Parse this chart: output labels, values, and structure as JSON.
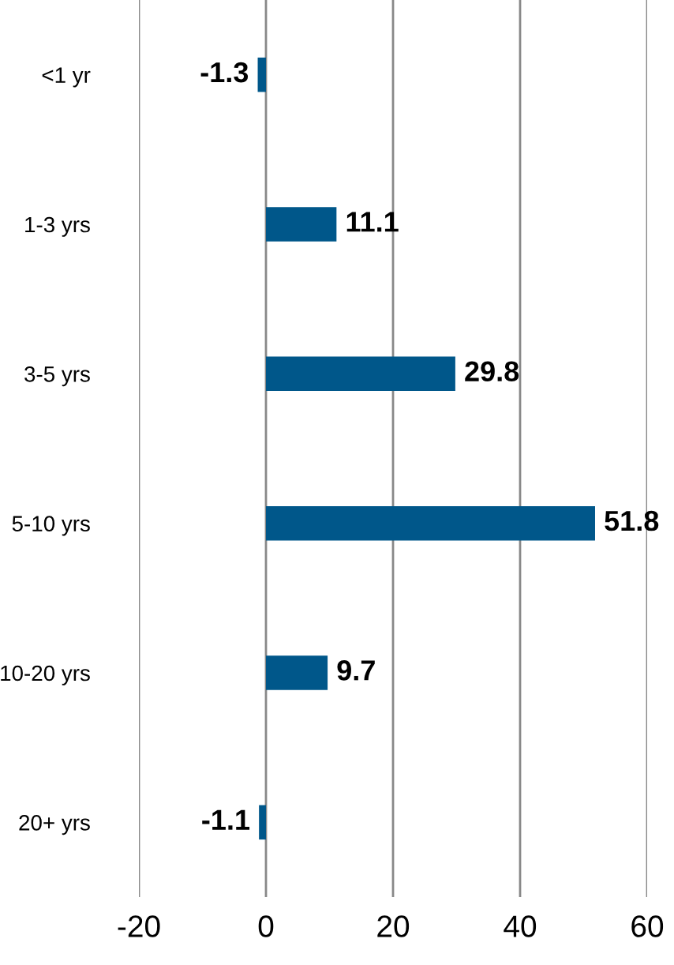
{
  "chart_data": {
    "type": "bar",
    "orientation": "horizontal",
    "categories": [
      "<1 yr",
      "1-3 yrs",
      "3-5 yrs",
      "5-10 yrs",
      "10-20 yrs",
      "20+ yrs"
    ],
    "values": [
      -1.3,
      11.1,
      29.8,
      51.8,
      9.7,
      -1.1
    ],
    "color": "#00578a",
    "data_labels": true,
    "xlim": [
      -20,
      60
    ],
    "xticks": [
      -20,
      0,
      20,
      40,
      60
    ],
    "grid": "x",
    "legend": false
  }
}
